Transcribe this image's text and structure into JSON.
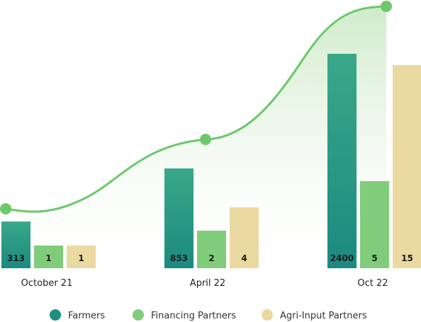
{
  "chart_data": {
    "type": "bar",
    "categories": [
      "October 21",
      "April 22",
      "Oct 22"
    ],
    "series": [
      {
        "name": "Farmers",
        "values": [
          313,
          853,
          2400
        ],
        "color": "#1f8f7f",
        "color_light": "#3aa888"
      },
      {
        "name": "Financing Partners",
        "values": [
          1,
          2,
          5
        ],
        "color": "#80cc7a",
        "color_light": "#80cc7a"
      },
      {
        "name": "Agri-Input Partners",
        "values": [
          1,
          4,
          15
        ],
        "color": "#ead9a0",
        "color_light": "#ead9a0"
      }
    ],
    "legend_position": "bottom",
    "grid": false,
    "trend_line": {
      "color": "#6cc86a",
      "fill": "#cfeacb"
    }
  }
}
